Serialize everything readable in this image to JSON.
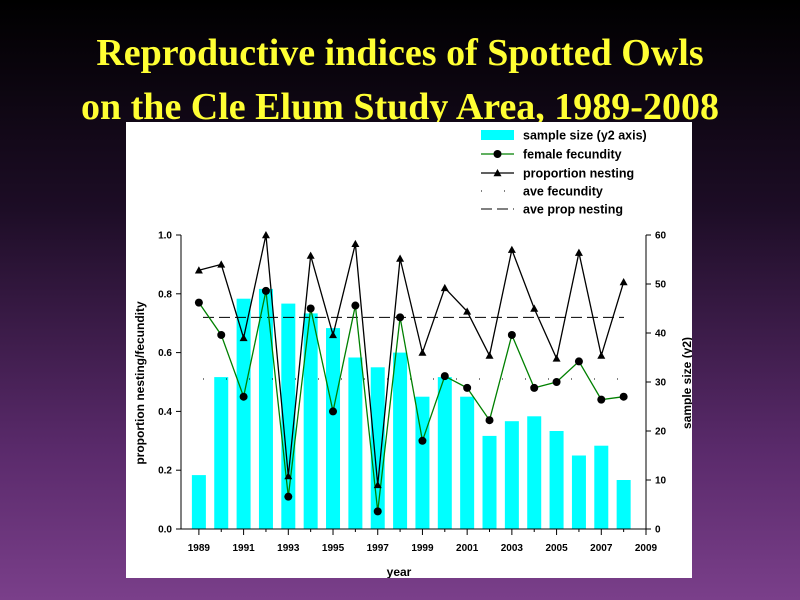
{
  "slide": {
    "title_line1": "Reproductive indices of Spotted Owls",
    "title_line2": "on the Cle Elum Study Area, 1989-2008"
  },
  "colors": {
    "bar": "#00ffff",
    "fecundity": "#008000",
    "marker": "#000000",
    "nesting": "#000000",
    "title": "#ffff33"
  },
  "chart_data": {
    "type": "bar+line",
    "title": "",
    "xlabel": "year",
    "ylabel": "proportion nesting/fecundity",
    "y2label": "sample size (y2)",
    "x": [
      1989,
      1990,
      1991,
      1992,
      1993,
      1994,
      1995,
      1996,
      1997,
      1998,
      1999,
      2000,
      2001,
      2002,
      2003,
      2004,
      2005,
      2006,
      2007,
      2008
    ],
    "xlim": [
      1988.2,
      2009
    ],
    "xticks": [
      "1989",
      "1991",
      "1993",
      "1995",
      "1997",
      "1999",
      "2001",
      "2003",
      "2005",
      "2007",
      "2009"
    ],
    "ylim": [
      0,
      1.0
    ],
    "yticks": [
      "0.0",
      "0.2",
      "0.4",
      "0.6",
      "0.8",
      "1.0"
    ],
    "y2lim": [
      0,
      60
    ],
    "y2ticks": [
      "0",
      "10",
      "20",
      "30",
      "40",
      "50",
      "60"
    ],
    "grid": false,
    "legend_position": "top-right",
    "series": [
      {
        "name": "sample size (y2 axis)",
        "kind": "bar",
        "axis": "y2",
        "values": [
          11,
          31,
          47,
          49,
          46,
          44,
          41,
          35,
          33,
          36,
          27,
          31,
          27,
          19,
          22,
          23,
          20,
          15,
          17,
          10
        ]
      },
      {
        "name": "female fecundity",
        "kind": "line",
        "marker": "circle",
        "axis": "y",
        "values": [
          0.77,
          0.66,
          0.45,
          0.81,
          0.11,
          0.75,
          0.4,
          0.76,
          0.06,
          0.72,
          0.3,
          0.52,
          0.48,
          0.37,
          0.66,
          0.48,
          0.5,
          0.57,
          0.44,
          0.45
        ]
      },
      {
        "name": "proportion nesting",
        "kind": "line",
        "marker": "triangle",
        "axis": "y",
        "values": [
          0.88,
          0.9,
          0.65,
          1.0,
          0.18,
          0.93,
          0.66,
          0.97,
          0.15,
          0.92,
          0.6,
          0.82,
          0.74,
          0.59,
          0.95,
          0.75,
          0.58,
          0.94,
          0.59,
          0.84
        ]
      },
      {
        "name": "ave fecundity",
        "kind": "hline",
        "style": "dotted",
        "axis": "y",
        "value": 0.51
      },
      {
        "name": "ave prop nesting",
        "kind": "hline",
        "style": "dashed",
        "axis": "y",
        "value": 0.72
      }
    ]
  }
}
